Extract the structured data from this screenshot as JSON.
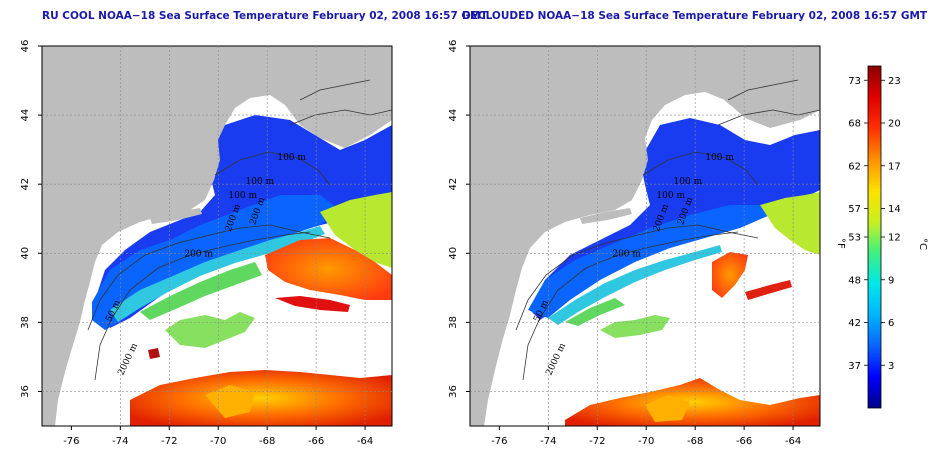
{
  "panels": [
    {
      "title": "RU COOL NOAA−18 Sea Surface Temperature February 02, 2008 16:57 GMT",
      "contour_labels": [
        "100 m",
        "100 m",
        "200 m",
        "200 m",
        "200 m",
        "2000 m",
        "100 m",
        "50 m"
      ]
    },
    {
      "title": "DECLOUDED NOAA−18 Sea Surface Temperature February 02, 2008 16:57 GMT",
      "contour_labels": [
        "100 m",
        "100 m",
        "200 m",
        "200 m",
        "200 m",
        "2000 m",
        "100 m",
        "50 m"
      ]
    }
  ],
  "map": {
    "lon_range": [
      -77.2,
      -62.9
    ],
    "lat_range": [
      35,
      46
    ],
    "lon_ticks": [
      -76,
      -74,
      -72,
      -70,
      -68,
      -66,
      -64
    ],
    "lat_ticks": [
      36,
      38,
      40,
      42,
      44,
      46
    ],
    "grid_lons": [
      -74,
      -72,
      -70,
      -68,
      -66,
      -64
    ],
    "grid_lats": [
      36,
      38,
      40,
      42,
      44
    ],
    "land_color": "#bdbdbd",
    "nodata_color": "#ffffff"
  },
  "colorbar": {
    "fahrenheit_label": "°F",
    "celsius_label": "°C",
    "fahrenheit_ticks": [
      "73",
      "68",
      "62",
      "57",
      "53",
      "48",
      "42",
      "37"
    ],
    "celsius_ticks": [
      "23",
      "20",
      "17",
      "14",
      "12",
      "9",
      "6",
      "3"
    ],
    "celsius_values": [
      23,
      20,
      17,
      14,
      12,
      9,
      6,
      3
    ],
    "range_c": [
      0,
      24
    ],
    "stops": [
      "#00008b",
      "#0000ff",
      "#0a64ff",
      "#00b4ff",
      "#00e8e8",
      "#40f080",
      "#c8f020",
      "#ffe000",
      "#ff9000",
      "#ff3000",
      "#e00000",
      "#8b0000"
    ]
  }
}
